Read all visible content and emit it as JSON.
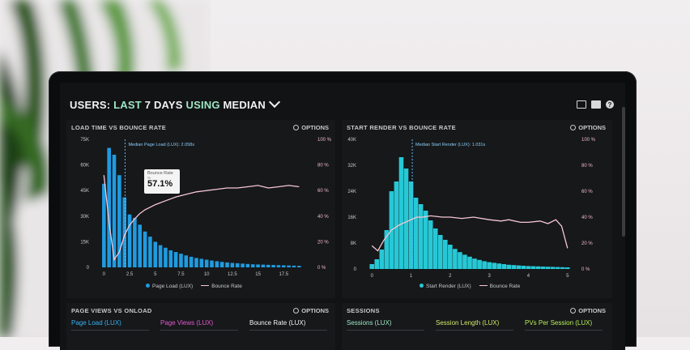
{
  "header": {
    "prefix": "USERS: ",
    "mid1": "LAST ",
    "bold1": "7 DAYS ",
    "mid2": "USING ",
    "bold2": "MEDIAN"
  },
  "icons": [
    "monitor-icon",
    "share-icon",
    "help-icon"
  ],
  "help_glyph": "?",
  "colors": {
    "bar_blue": "#1f9be0",
    "bar_cyan": "#27c8d6",
    "line_pink": "#f6c6d4",
    "accent_teal": "#9ee4c4"
  },
  "panels": {
    "load": {
      "title": "LOAD TIME VS BOUNCE RATE",
      "options": "OPTIONS",
      "median_label": "Median Page Load (LUX): 2.058s",
      "tooltip_title": "Bounce Rate",
      "tooltip_sub": "%",
      "tooltip_value": "57.1%",
      "legend_bar": "Page Load (LUX)",
      "legend_line": "Bounce Rate"
    },
    "render": {
      "title": "START RENDER VS BOUNCE RATE",
      "options": "OPTIONS",
      "median_label": "Median Start Render (LUX): 1.031s",
      "legend_bar": "Start Render (LUX)",
      "legend_line": "Bounce Rate"
    },
    "pageviews": {
      "title": "PAGE VIEWS VS ONLOAD",
      "options": "OPTIONS",
      "metrics": [
        "Page Load (LUX)",
        "Page Views (LUX)",
        "Bounce Rate (LUX)"
      ]
    },
    "sessions": {
      "title": "SESSIONS",
      "options": "OPTIONS",
      "metrics": [
        "Sessions (LUX)",
        "Session Length (LUX)",
        "PVs Per Session (LUX)"
      ]
    }
  },
  "chart_data": [
    {
      "type": "bar",
      "title": "LOAD TIME VS BOUNCE RATE",
      "x_ticks": [
        "0",
        "2.5",
        "5",
        "7.5",
        "10",
        "12.5",
        "15",
        "17.5"
      ],
      "x_range": [
        -0.5,
        20
      ],
      "y_ticks": [
        "0",
        "15K",
        "30K",
        "45K",
        "60K",
        "75K"
      ],
      "ylim": [
        0,
        75000
      ],
      "y2_ticks": [
        "0 %",
        "20 %",
        "40 %",
        "60 %",
        "80 %",
        "100 %"
      ],
      "y2lim": [
        0,
        100
      ],
      "median_x": 2.058,
      "series": [
        {
          "name": "Page Load (LUX)",
          "x": [
            0,
            0.5,
            1,
            1.5,
            2,
            2.5,
            3,
            3.5,
            4,
            4.5,
            5,
            5.5,
            6,
            6.5,
            7,
            7.5,
            8,
            8.5,
            9,
            9.5,
            10,
            10.5,
            11,
            11.5,
            12,
            12.5,
            13,
            13.5,
            14,
            14.5,
            15,
            15.5,
            16,
            16.5,
            17,
            17.5,
            18,
            18.5,
            19
          ],
          "values": [
            49000,
            70000,
            66000,
            54000,
            41000,
            31000,
            29000,
            25000,
            21000,
            18000,
            15000,
            13000,
            11500,
            10000,
            9000,
            8000,
            7000,
            6200,
            5500,
            5000,
            4500,
            4000,
            3600,
            3200,
            2900,
            2600,
            2400,
            2200,
            2000,
            1800,
            1700,
            1600,
            1500,
            1400,
            1300,
            1200,
            1100,
            1000,
            900
          ]
        },
        {
          "name": "Bounce Rate",
          "x": [
            0,
            0.5,
            1,
            1.5,
            2,
            2.5,
            3,
            3.5,
            4,
            5,
            6,
            7,
            8,
            9,
            10,
            11,
            12,
            13,
            14,
            15,
            16,
            17,
            18,
            19
          ],
          "values": [
            72,
            35,
            6,
            12,
            25,
            33,
            38,
            42,
            45,
            49,
            52,
            55,
            57,
            59,
            60,
            61,
            62,
            62,
            63,
            64,
            62,
            63,
            64,
            63
          ]
        }
      ]
    },
    {
      "type": "bar",
      "title": "START RENDER VS BOUNCE RATE",
      "x_ticks": [
        "0",
        "1",
        "2",
        "3",
        "4",
        "5"
      ],
      "x_range": [
        -0.15,
        5.15
      ],
      "y_ticks": [
        "0",
        "8K",
        "16K",
        "24K",
        "32K",
        "40K"
      ],
      "ylim": [
        0,
        40000
      ],
      "y2_ticks": [
        "0 %",
        "20 %",
        "40 %",
        "60 %",
        "80 %",
        "100 %"
      ],
      "y2lim": [
        0,
        100
      ],
      "median_x": 1.031,
      "series": [
        {
          "name": "Start Render (LUX)",
          "x": [
            0,
            0.125,
            0.25,
            0.375,
            0.5,
            0.625,
            0.75,
            0.875,
            1.0,
            1.125,
            1.25,
            1.375,
            1.5,
            1.625,
            1.75,
            1.875,
            2.0,
            2.125,
            2.25,
            2.375,
            2.5,
            2.625,
            2.75,
            2.875,
            3.0,
            3.125,
            3.25,
            3.375,
            3.5,
            3.625,
            3.75,
            3.875,
            4.0,
            4.125,
            4.25,
            4.375,
            4.5,
            4.625,
            4.75,
            4.875,
            5.0
          ],
          "values": [
            1500,
            3000,
            6000,
            12000,
            24000,
            27000,
            34500,
            31000,
            27000,
            22000,
            20000,
            18000,
            15000,
            12500,
            10500,
            9000,
            7500,
            6200,
            5200,
            4400,
            3800,
            3200,
            2800,
            2400,
            2100,
            1900,
            1700,
            1500,
            1300,
            1200,
            1100,
            1000,
            900,
            850,
            800,
            750,
            700,
            650,
            600,
            550,
            500
          ]
        },
        {
          "name": "Bounce Rate",
          "x": [
            0,
            0.15,
            0.3,
            0.5,
            0.7,
            0.85,
            1.0,
            1.15,
            1.3,
            1.5,
            1.8,
            2.0,
            2.3,
            2.6,
            3.0,
            3.3,
            3.5,
            3.8,
            4.0,
            4.3,
            4.5,
            4.7,
            4.85,
            5.0
          ],
          "values": [
            18,
            14,
            22,
            30,
            34,
            36,
            38,
            40,
            40,
            41,
            40,
            40,
            39,
            40,
            38,
            37,
            38,
            36,
            36,
            37,
            35,
            38,
            33,
            16
          ]
        }
      ]
    }
  ]
}
